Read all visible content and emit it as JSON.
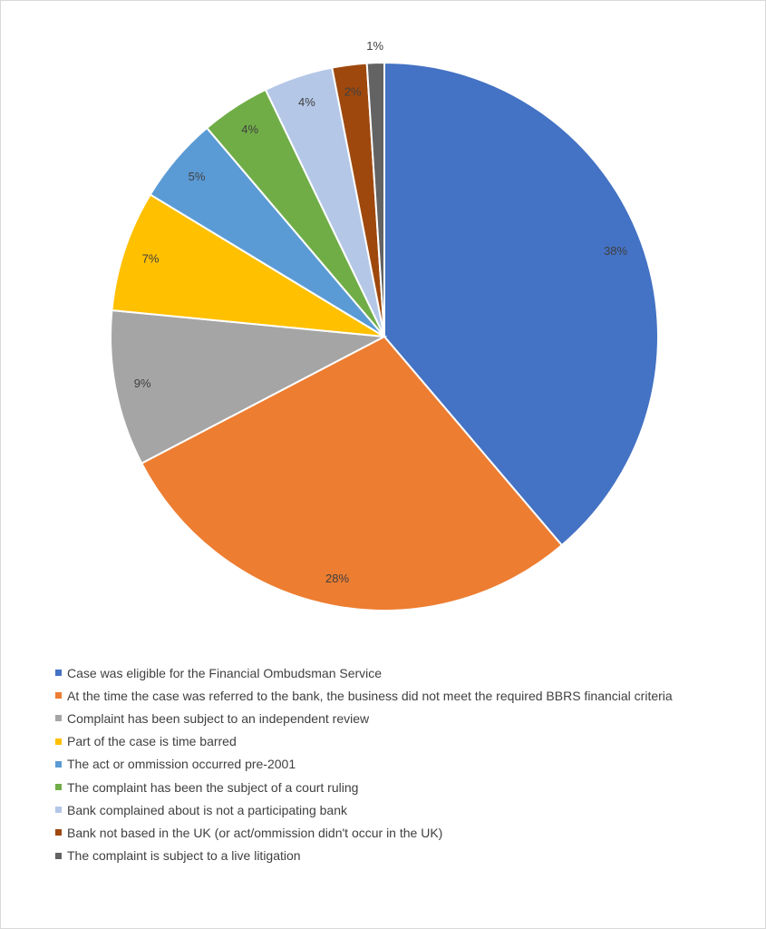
{
  "chart_data": {
    "type": "pie",
    "title": "",
    "legend_position": "bottom",
    "start_angle": "12 o'clock, clockwise",
    "slices": [
      {
        "label": "Case was eligible for the Financial Ombudsman Service",
        "value": 38,
        "value_label": "38%",
        "color": "#4472C4"
      },
      {
        "label": "At the time the case was referred to the bank, the business did not meet the required BBRS financial criteria",
        "value": 28,
        "value_label": "28%",
        "color": "#ED7D31"
      },
      {
        "label": "Complaint has been subject to an independent review",
        "value": 9,
        "value_label": "9%",
        "color": "#A5A5A5"
      },
      {
        "label": "Part of the case is time barred",
        "value": 7,
        "value_label": "7%",
        "color": "#FFC000"
      },
      {
        "label": "The act or ommission occurred pre-2001",
        "value": 5,
        "value_label": "5%",
        "color": "#5B9BD5"
      },
      {
        "label": "The complaint has been the subject of a court ruling",
        "value": 4,
        "value_label": "4%",
        "color": "#70AD47"
      },
      {
        "label": "Bank complained about is not a participating bank",
        "value": 4,
        "value_label": "4%",
        "color": "#B4C7E7"
      },
      {
        "label": "Bank not based in the UK (or act/ommission didn't occur in the UK)",
        "value": 2,
        "value_label": "2%",
        "color": "#9E480E"
      },
      {
        "label": "The complaint is subject to a live litigation",
        "value": 1,
        "value_label": "1%",
        "color": "#636363"
      }
    ]
  }
}
